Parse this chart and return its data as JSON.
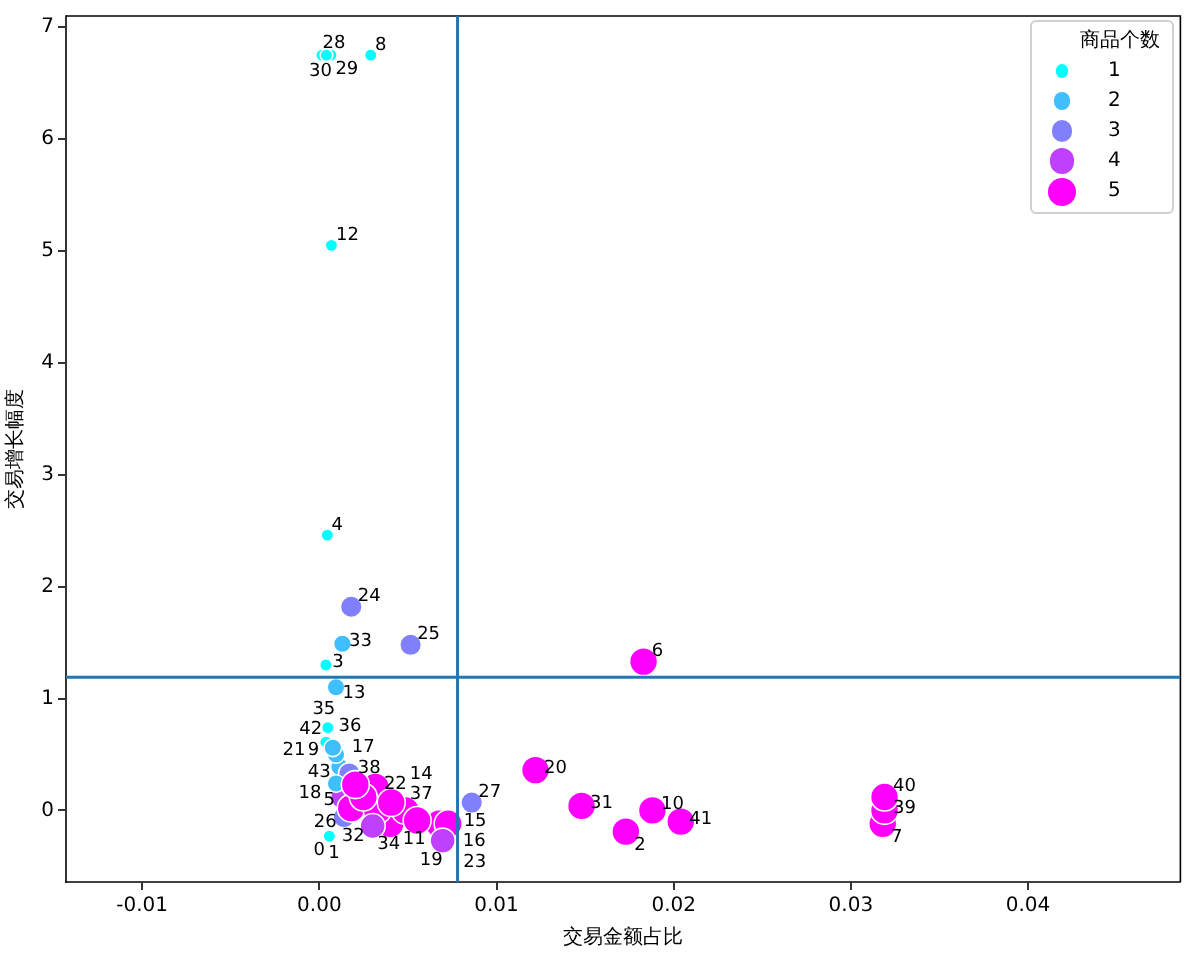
{
  "chart_data": {
    "type": "bubble",
    "xlabel": "交易金额占比",
    "ylabel": "交易增长幅度",
    "legend_title": "商品个数",
    "xlim": [
      -0.0143,
      0.0486
    ],
    "ylim": [
      -0.64,
      7.1
    ],
    "xticks": [
      -0.01,
      {
        "value": 0,
        "label": "0.00"
      },
      0.01,
      0.02,
      0.03,
      0.04
    ],
    "yticks": [
      0,
      1,
      2,
      3,
      4,
      5,
      6,
      7
    ],
    "size_legend": [
      1,
      2,
      3,
      4,
      5
    ],
    "ref_lines": [
      {
        "axis": "x",
        "value": 0.0078,
        "color": "#1f77b4"
      },
      {
        "axis": "y",
        "value": 1.19,
        "color": "#1f77b4"
      }
    ],
    "series": [
      {
        "x": [
          0.00056,
          0.00139,
          0.0173,
          0.00037,
          0.00045,
          0.00135,
          0.0183,
          0.0318,
          0.0029,
          0.00113,
          0.0188,
          0.004,
          0.00068,
          0.00094,
          0.00485,
          0.00676,
          0.00727,
          0.00169,
          0.00094,
          0.00552,
          0.0122,
          0.00037,
          0.00316,
          0.00696,
          0.0018,
          0.00515,
          0.0018,
          0.0086,
          0.00015,
          0.00065,
          0.0004,
          0.0148,
          0.00327,
          0.0013,
          0.00301,
          0.00048,
          0.00094,
          0.00406,
          0.00248,
          0.0319,
          0.0319,
          0.0204,
          0.00076,
          0.00203
        ],
        "values": [
          -0.23,
          -0.06,
          -0.19,
          1.3,
          2.46,
          0.12,
          1.33,
          -0.12,
          6.75,
          0.39,
          0,
          -0.12,
          5.05,
          1.1,
          0,
          -0.12,
          -0.12,
          0.33,
          0.24,
          -0.09,
          0.36,
          0.61,
          0.21,
          -0.27,
          1.82,
          1.48,
          0.02,
          0.07,
          6.75,
          6.75,
          6.75,
          0.04,
          0,
          1.49,
          -0.14,
          0.74,
          0.5,
          0.07,
          0.12,
          0,
          0.12,
          -0.1,
          0.56,
          0.23
        ],
        "sizes": [
          1,
          3,
          5,
          1,
          1,
          4,
          5,
          5,
          1,
          2,
          5,
          5,
          1,
          2,
          5,
          5,
          5,
          3,
          2,
          5,
          5,
          1,
          5,
          4,
          3,
          3,
          5,
          3,
          1,
          1,
          1,
          5,
          5,
          2,
          4,
          1,
          2,
          5,
          5,
          5,
          5,
          5,
          2,
          5
        ],
        "colors": [
          "#00ffff",
          "#8080ff",
          "#ff00ff",
          "#00ffff",
          "#00ffff",
          "#bf40ff",
          "#ff00ff",
          "#ff00ff",
          "#00ffff",
          "#40bfff",
          "#ff00ff",
          "#ff00ff",
          "#00ffff",
          "#40bfff",
          "#ff00ff",
          "#ff00ff",
          "#ff00ff",
          "#8080ff",
          "#40bfff",
          "#ff00ff",
          "#ff00ff",
          "#00ffff",
          "#ff00ff",
          "#bf40ff",
          "#8080ff",
          "#8080ff",
          "#ff00ff",
          "#8080ff",
          "#00ffff",
          "#00ffff",
          "#00ffff",
          "#ff00ff",
          "#ff00ff",
          "#40bfff",
          "#bf40ff",
          "#00ffff",
          "#40bfff",
          "#ff00ff",
          "#ff00ff",
          "#ff00ff",
          "#ff00ff",
          "#ff00ff",
          "#40bfff",
          "#ff00ff"
        ]
      }
    ],
    "annotations": [
      {
        "text": "0",
        "x": 0.00056,
        "y": -0.23
      },
      {
        "text": "1",
        "x": 0.00139,
        "y": -0.06
      },
      {
        "text": "2",
        "x": 0.0173,
        "y": -0.19
      },
      {
        "text": "3",
        "x": 0.00037,
        "y": 1.3
      },
      {
        "text": "4",
        "x": 0.00045,
        "y": 2.46
      },
      {
        "text": "5",
        "x": 0.00135,
        "y": 0.12
      },
      {
        "text": "6",
        "x": 0.0183,
        "y": 1.33
      },
      {
        "text": "7",
        "x": 0.0318,
        "y": -0.12
      },
      {
        "text": "8",
        "x": 0.0029,
        "y": 6.75
      },
      {
        "text": "9",
        "x": 0.00113,
        "y": 0.39
      },
      {
        "text": "10",
        "x": 0.0188,
        "y": 0
      },
      {
        "text": "11",
        "x": 0.004,
        "y": -0.12
      },
      {
        "text": "12",
        "x": 0.00068,
        "y": 5.05
      },
      {
        "text": "13",
        "x": 0.00094,
        "y": 1.1
      },
      {
        "text": "14",
        "x": 0.00485,
        "y": 0
      },
      {
        "text": "15",
        "x": 0.00676,
        "y": -0.12
      },
      {
        "text": "16",
        "x": 0.00727,
        "y": -0.12
      },
      {
        "text": "17",
        "x": 0.00169,
        "y": 0.33
      },
      {
        "text": "18",
        "x": 0.00094,
        "y": 0.24
      },
      {
        "text": "19",
        "x": 0.00552,
        "y": -0.09
      },
      {
        "text": "20",
        "x": 0.0122,
        "y": 0.36
      },
      {
        "text": "21",
        "x": 0.00037,
        "y": 0.61
      },
      {
        "text": "22",
        "x": 0.00316,
        "y": 0.21
      },
      {
        "text": "23",
        "x": 0.00696,
        "y": -0.27
      },
      {
        "text": "24",
        "x": 0.0018,
        "y": 1.82
      },
      {
        "text": "25",
        "x": 0.00515,
        "y": 1.48
      },
      {
        "text": "26",
        "x": 0.0018,
        "y": 0.02
      },
      {
        "text": "27",
        "x": 0.0086,
        "y": 0.07
      },
      {
        "text": "28",
        "x": 0.00015,
        "y": 6.75
      },
      {
        "text": "29",
        "x": 0.00065,
        "y": 6.75
      },
      {
        "text": "30",
        "x": 0.0004,
        "y": 6.75
      },
      {
        "text": "31",
        "x": 0.0148,
        "y": 0.04
      },
      {
        "text": "32",
        "x": 0.00327,
        "y": 0
      },
      {
        "text": "33",
        "x": 0.0013,
        "y": 1.49
      },
      {
        "text": "34",
        "x": 0.00301,
        "y": -0.14
      },
      {
        "text": "35",
        "x": 0.00048,
        "y": 0.74
      },
      {
        "text": "36",
        "x": 0.00094,
        "y": 0.5
      },
      {
        "text": "37",
        "x": 0.00406,
        "y": 0.07
      },
      {
        "text": "38",
        "x": 0.00248,
        "y": 0.12
      },
      {
        "text": "39",
        "x": 0.0319,
        "y": 0
      },
      {
        "text": "40",
        "x": 0.0319,
        "y": 0.12
      },
      {
        "text": "41",
        "x": 0.0204,
        "y": -0.1
      },
      {
        "text": "42",
        "x": 0.00076,
        "y": 0.56
      },
      {
        "text": "43",
        "x": 0.00203,
        "y": 0.23
      }
    ]
  }
}
